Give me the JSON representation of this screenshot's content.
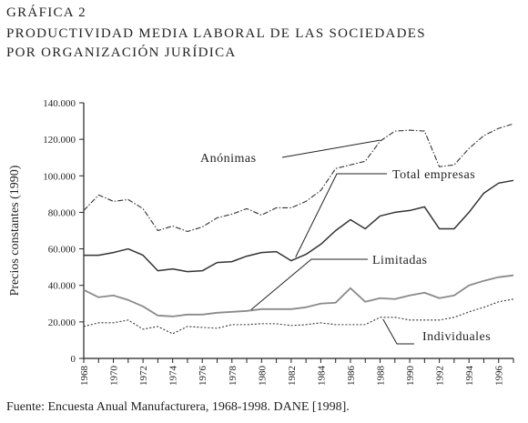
{
  "title": {
    "line1": "GRÁFICA 2",
    "line2": "PRODUCTIVIDAD MEDIA LABORAL DE LAS SOCIEDADES",
    "line3": "POR ORGANIZACIÓN JURÍDICA"
  },
  "source": "Fuente: Encuesta Anual Manufacturera, 1968-1998. DANE [1998].",
  "chart_data": {
    "type": "line",
    "title": "",
    "xlabel": "",
    "ylabel": "Precios constantes (1990)",
    "x": [
      1968,
      1969,
      1970,
      1971,
      1972,
      1973,
      1974,
      1975,
      1976,
      1977,
      1978,
      1979,
      1980,
      1981,
      1982,
      1983,
      1984,
      1985,
      1986,
      1987,
      1988,
      1989,
      1990,
      1991,
      1992,
      1993,
      1994,
      1995,
      1996,
      1997
    ],
    "x_tick_labels": [
      "1968",
      "1970",
      "1972",
      "1974",
      "1976",
      "1978",
      "1980",
      "1982",
      "1984",
      "1986",
      "1988",
      "1990",
      "1992",
      "1994",
      "1996"
    ],
    "y_tick_labels": [
      "0",
      "20.000",
      "40.000",
      "60.000",
      "80.000",
      "100.000",
      "120.000",
      "140.000"
    ],
    "ylim": [
      0,
      140000
    ],
    "xlim": [
      1968,
      1997
    ],
    "grid": false,
    "legend": "none",
    "series": [
      {
        "name": "Anónimas",
        "style": "dash-dot",
        "values": [
          81000,
          89500,
          86000,
          87000,
          82000,
          70000,
          72500,
          69500,
          72000,
          77000,
          79000,
          82000,
          78500,
          82500,
          82500,
          86000,
          92000,
          104000,
          106000,
          108000,
          119000,
          124500,
          125000,
          124500,
          105000,
          106000,
          115000,
          122000,
          126000,
          128500
        ]
      },
      {
        "name": "Total empresas",
        "style": "solid",
        "values": [
          56500,
          56500,
          58000,
          60000,
          56500,
          48000,
          49000,
          47500,
          48000,
          52500,
          53000,
          56000,
          58000,
          58500,
          53500,
          57000,
          62500,
          70000,
          76000,
          71000,
          78000,
          80000,
          81000,
          83000,
          71000,
          71000,
          80000,
          90500,
          96000,
          97500
        ]
      },
      {
        "name": "Limitadas",
        "style": "solid-gray",
        "values": [
          37500,
          33500,
          34500,
          32000,
          28500,
          23500,
          23000,
          24000,
          24000,
          25000,
          25500,
          26000,
          27000,
          27000,
          27000,
          28000,
          30000,
          30500,
          38500,
          31000,
          33000,
          32500,
          34500,
          36000,
          33000,
          34500,
          40000,
          42500,
          44500,
          45500
        ]
      },
      {
        "name": "Individuales",
        "style": "dotted",
        "values": [
          17500,
          19500,
          19500,
          21000,
          16000,
          17500,
          13500,
          17500,
          17000,
          16500,
          18500,
          18500,
          19000,
          19000,
          18000,
          18500,
          19500,
          18500,
          18500,
          18500,
          22500,
          22500,
          21000,
          21000,
          21000,
          22500,
          25500,
          28000,
          31000,
          32500
        ]
      }
    ],
    "annotations": [
      {
        "text": "Anónimas",
        "series": 0
      },
      {
        "text": "Total empresas",
        "series": 1
      },
      {
        "text": "Limitadas",
        "series": 2
      },
      {
        "text": "Individuales",
        "series": 3
      }
    ],
    "colors": {
      "axis": "#222222",
      "dark": "#333333",
      "gray": "#8a8a8a"
    }
  }
}
